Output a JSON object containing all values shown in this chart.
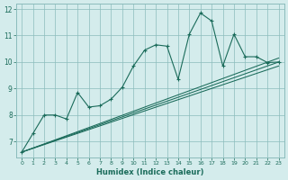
{
  "bg_color": "#d4ecec",
  "grid_color": "#8bbcbc",
  "line_color": "#1a6b5a",
  "xlabel": "Humidex (Indice chaleur)",
  "ylim": [
    6.4,
    12.2
  ],
  "xlim": [
    -0.5,
    23.5
  ],
  "yticks": [
    7,
    8,
    9,
    10,
    11,
    12
  ],
  "xticks": [
    0,
    1,
    2,
    3,
    4,
    5,
    6,
    7,
    8,
    9,
    10,
    11,
    12,
    13,
    14,
    15,
    16,
    17,
    18,
    19,
    20,
    21,
    22,
    23
  ],
  "main_line": [
    6.6,
    7.3,
    8.0,
    8.0,
    7.85,
    8.85,
    8.3,
    8.35,
    8.6,
    9.05,
    9.85,
    10.45,
    10.65,
    10.6,
    9.35,
    11.05,
    11.85,
    11.55,
    9.85,
    11.05,
    10.2,
    10.2,
    9.98,
    10.0
  ],
  "trend1_start": 6.6,
  "trend1_end": 9.85,
  "trend2_start": 6.6,
  "trend2_end": 10.0,
  "trend3_start": 6.6,
  "trend3_end": 10.15
}
